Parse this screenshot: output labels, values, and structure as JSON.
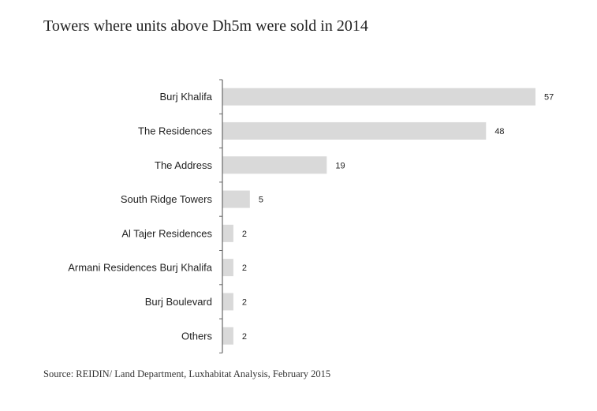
{
  "chart_data": {
    "type": "bar",
    "orientation": "horizontal",
    "title": "Towers where units above Dh5m were sold in 2014",
    "source": "Source: REIDIN/ Land Department, Luxhabitat Analysis, February 2015",
    "categories": [
      "Burj Khalifa",
      "The Residences",
      "The Address",
      "South Ridge Towers",
      "Al Tajer Residences",
      "Armani Residences Burj Khalifa",
      "Burj Boulevard",
      "Others"
    ],
    "values": [
      57,
      48,
      19,
      5,
      2,
      2,
      2,
      2
    ],
    "xlim": [
      0,
      57
    ],
    "data_labels": true,
    "grid": false,
    "bar_color": "#d9d9d9",
    "axis_color": "#666666"
  }
}
